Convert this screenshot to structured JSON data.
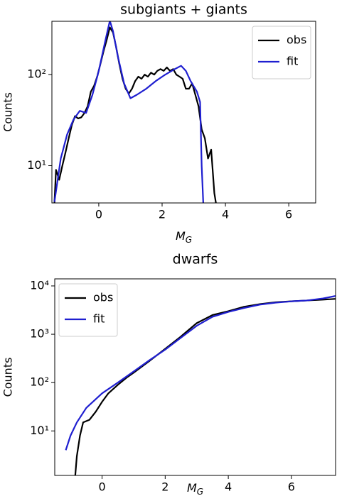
{
  "chart_data": [
    {
      "type": "line",
      "title": "subgiants + giants",
      "ylabel": "Counts",
      "xlabel_symbol": "M",
      "xlabel_subscript": "G",
      "log_y": true,
      "legend": "upper right",
      "xlim": [
        -1.48,
        6.85
      ],
      "xticks": [
        0,
        2,
        4,
        6
      ],
      "ylim": [
        3.9,
        385
      ],
      "yticks": [
        {
          "value": 10,
          "label": "10¹"
        },
        {
          "value": 100,
          "label": "10²"
        }
      ],
      "series": [
        {
          "name": "obs",
          "color": "#000000",
          "x": [
            -1.4,
            -1.35,
            -1.25,
            -1.15,
            -1.05,
            -0.95,
            -0.85,
            -0.75,
            -0.65,
            -0.55,
            -0.45,
            -0.35,
            -0.25,
            -0.15,
            -0.05,
            0.05,
            0.15,
            0.25,
            0.35,
            0.45,
            0.55,
            0.65,
            0.75,
            0.85,
            0.95,
            1.05,
            1.15,
            1.25,
            1.35,
            1.45,
            1.55,
            1.65,
            1.75,
            1.85,
            1.95,
            2.05,
            2.15,
            2.25,
            2.35,
            2.45,
            2.55,
            2.65,
            2.75,
            2.85,
            2.95,
            3.05,
            3.15,
            3.25,
            3.35,
            3.45,
            3.55,
            3.65,
            3.7
          ],
          "values": [
            3.9,
            9,
            7,
            10,
            14,
            20,
            28,
            35,
            33,
            34,
            38,
            45,
            65,
            75,
            95,
            130,
            180,
            240,
            330,
            290,
            200,
            130,
            90,
            70,
            62,
            70,
            85,
            95,
            90,
            100,
            95,
            105,
            100,
            110,
            115,
            110,
            120,
            110,
            115,
            100,
            95,
            90,
            70,
            70,
            80,
            60,
            45,
            25,
            20,
            12,
            15,
            5,
            3.9
          ]
        },
        {
          "name": "fit",
          "color": "#1f1fd0",
          "x": [
            -1.4,
            -1.2,
            -1.0,
            -0.8,
            -0.6,
            -0.4,
            -0.2,
            0,
            0.2,
            0.35,
            0.45,
            0.6,
            0.8,
            1.0,
            1.2,
            1.5,
            1.8,
            2.1,
            2.4,
            2.6,
            2.75,
            2.9,
            3.1,
            3.2,
            3.25,
            3.3
          ],
          "values": [
            4,
            12,
            22,
            32,
            40,
            38,
            60,
            110,
            230,
            390,
            300,
            160,
            80,
            55,
            60,
            70,
            85,
            100,
            115,
            125,
            110,
            85,
            65,
            50,
            10,
            3.9
          ]
        }
      ]
    },
    {
      "type": "line",
      "title": "dwarfs",
      "ylabel": "Counts",
      "xlabel_symbol": "M",
      "xlabel_subscript": "G",
      "log_y": true,
      "legend": "upper left",
      "xlim": [
        -1.5,
        7.4
      ],
      "xticks": [
        0,
        2,
        4,
        6
      ],
      "ylim": [
        1.2,
        14000
      ],
      "yticks": [
        {
          "value": 10,
          "label": "10¹"
        },
        {
          "value": 100,
          "label": "10²"
        },
        {
          "value": 1000,
          "label": "10³"
        },
        {
          "value": 10000,
          "label": "10⁴"
        }
      ],
      "series": [
        {
          "name": "obs",
          "color": "#000000",
          "x": [
            -0.85,
            -0.8,
            -0.7,
            -0.6,
            -0.4,
            -0.2,
            0,
            0.2,
            0.5,
            0.8,
            1.0,
            1.5,
            2.0,
            2.5,
            3.0,
            3.5,
            4.0,
            4.5,
            5.0,
            5.5,
            6.0,
            6.5,
            7.0,
            7.4
          ],
          "values": [
            1.2,
            3,
            8,
            15,
            17,
            25,
            40,
            60,
            90,
            130,
            160,
            280,
            500,
            900,
            1700,
            2500,
            3000,
            3700,
            4200,
            4600,
            4800,
            5000,
            5200,
            5400
          ]
        },
        {
          "name": "fit",
          "color": "#1f1fd0",
          "x": [
            -1.15,
            -1.0,
            -0.8,
            -0.5,
            0,
            0.5,
            1.0,
            1.5,
            2.0,
            2.5,
            3.0,
            3.5,
            4.0,
            4.5,
            5.0,
            5.5,
            6.0,
            6.5,
            7.0,
            7.4
          ],
          "values": [
            4,
            8,
            15,
            30,
            60,
            100,
            170,
            290,
            480,
            850,
            1500,
            2300,
            2900,
            3500,
            4100,
            4500,
            4800,
            5000,
            5500,
            6200
          ]
        }
      ]
    }
  ]
}
